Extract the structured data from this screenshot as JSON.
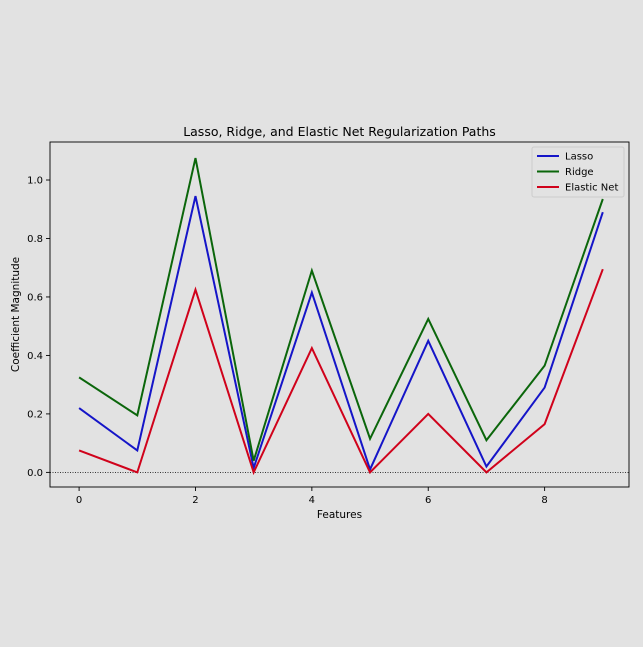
{
  "chart_data": {
    "type": "line",
    "title": "Lasso, Ridge, and Elastic Net Regularization Paths",
    "xlabel": "Features",
    "ylabel": "Coefficient Magnitude",
    "x": [
      0,
      1,
      2,
      3,
      4,
      5,
      6,
      7,
      8,
      9
    ],
    "xlim": [
      -0.5,
      9.45
    ],
    "ylim": [
      -0.05,
      1.13
    ],
    "xticks": [
      0,
      2,
      4,
      6,
      8
    ],
    "yticks": [
      0.0,
      0.2,
      0.4,
      0.6,
      0.8,
      1.0
    ],
    "xtick_labels": [
      "0",
      "2",
      "4",
      "6",
      "8"
    ],
    "ytick_labels": [
      "0.0",
      "0.2",
      "0.4",
      "0.6",
      "0.8",
      "1.0"
    ],
    "grid": false,
    "reference_line": {
      "y": 0,
      "style": "dotted"
    },
    "legend": "top-right",
    "series": [
      {
        "name": "Lasso",
        "color": "#1515c8",
        "values": [
          0.22,
          0.075,
          0.945,
          0.015,
          0.615,
          0.01,
          0.45,
          0.02,
          0.29,
          0.89
        ]
      },
      {
        "name": "Ridge",
        "color": "#0b660b",
        "values": [
          0.325,
          0.195,
          1.075,
          0.04,
          0.69,
          0.115,
          0.525,
          0.11,
          0.365,
          0.935
        ]
      },
      {
        "name": "Elastic Net",
        "color": "#d0021b",
        "values": [
          0.075,
          0.0,
          0.625,
          0.0,
          0.425,
          0.0,
          0.2,
          0.0,
          0.165,
          0.695
        ]
      }
    ]
  }
}
